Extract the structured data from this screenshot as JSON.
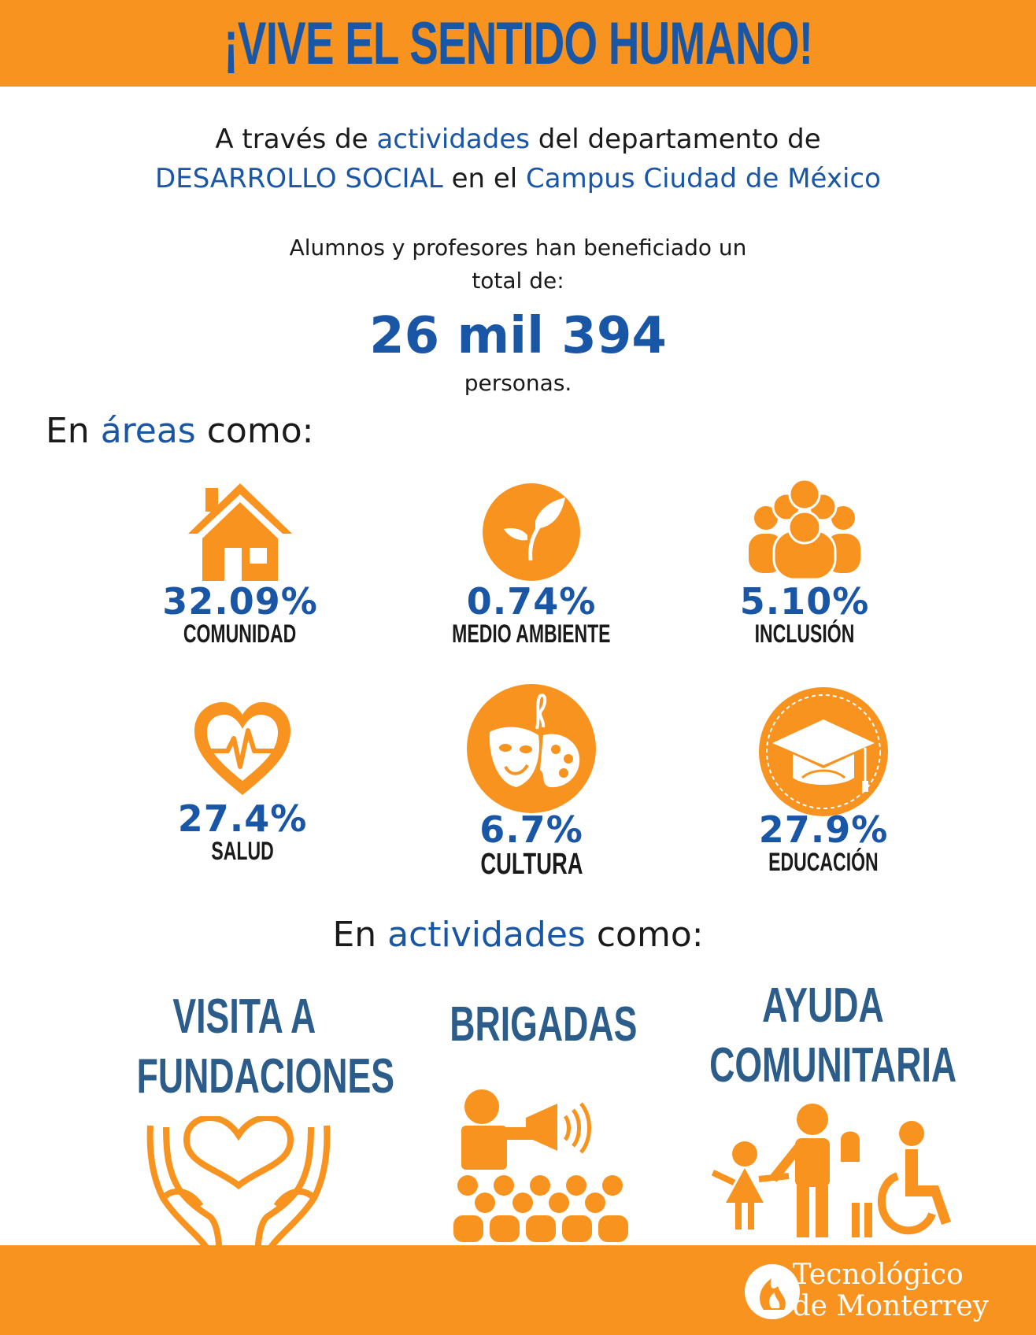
{
  "banner": {
    "title": "¡VIVE EL SENTIDO HUMANO!"
  },
  "intro": {
    "line1_a": "A través de",
    "line1_b": "actividades",
    "line1_c": "del departamento de",
    "line2_a": "DESARROLLO SOCIAL",
    "line2_b": "en el",
    "line2_c": "Campus Ciudad de México"
  },
  "summary": {
    "text_line1": "Alumnos y profesores han beneficiado un",
    "text_line2": "total de:",
    "number": "26 mil 394",
    "unit": "personas."
  },
  "areas_heading": {
    "a": "En",
    "b": "áreas",
    "c": "como:"
  },
  "areas": [
    {
      "percent": "32.09%",
      "label": "COMUNIDAD",
      "icon": "house-icon"
    },
    {
      "percent": "0.74%",
      "label": "MEDIO AMBIENTE",
      "icon": "leaf-icon"
    },
    {
      "percent": "5.10%",
      "label": "INCLUSIÓN",
      "icon": "people-group-icon"
    },
    {
      "percent": "27.4%",
      "label": "SALUD",
      "icon": "heart-pulse-icon"
    },
    {
      "percent": "6.7%",
      "label": "CULTURA",
      "icon": "theater-mask-palette-icon"
    },
    {
      "percent": "27.9%",
      "label": "EDUCACIÓN",
      "icon": "graduation-cap-icon"
    }
  ],
  "activities_heading": {
    "a": "En",
    "b": "actividades",
    "c": "como:"
  },
  "activities": [
    {
      "line1": "VISITA A",
      "line2": "FUNDACIONES",
      "icon": "hands-heart-icon"
    },
    {
      "line1": "BRIGADAS",
      "line2": "",
      "icon": "megaphone-crowd-icon"
    },
    {
      "line1": "AYUDA",
      "line2": "COMUNITARIA",
      "icon": "family-wheelchair-icon"
    }
  ],
  "footer": {
    "logo_line1": "Tecnológico",
    "logo_line2": "de Monterrey"
  },
  "colors": {
    "orange": "#f7931e",
    "blue": "#1a56a6",
    "activity_blue": "#2b5c8a"
  }
}
